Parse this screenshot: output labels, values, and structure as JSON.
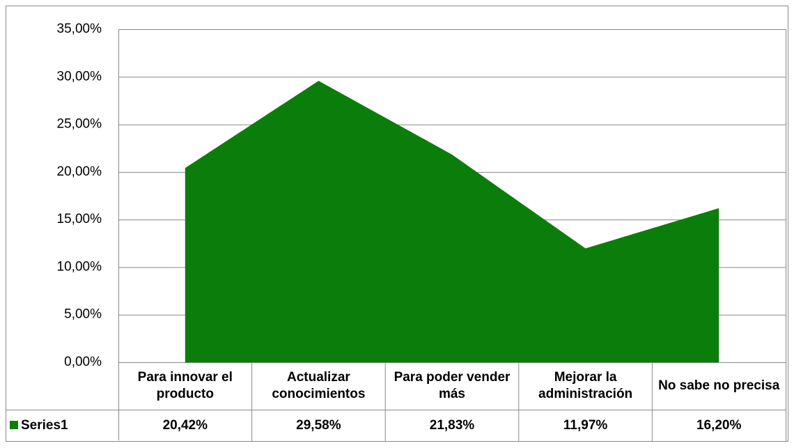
{
  "chart_data": {
    "type": "area",
    "categories": [
      "Para innovar el producto",
      "Actualizar conocimientos",
      "Para poder vender más",
      "Mejorar la administración",
      "No sabe no precisa"
    ],
    "series": [
      {
        "name": "Series1",
        "color": "#0b7d0b",
        "values": [
          20.42,
          29.58,
          21.83,
          11.97,
          16.2
        ],
        "value_labels": [
          "20,42%",
          "29,58%",
          "21,83%",
          "11,97%",
          "16,20%"
        ]
      }
    ],
    "ylim": [
      0,
      35
    ],
    "yticks": [
      {
        "value": 0,
        "label": "0,00%"
      },
      {
        "value": 5,
        "label": "5,00%"
      },
      {
        "value": 10,
        "label": "10,00%"
      },
      {
        "value": 15,
        "label": "15,00%"
      },
      {
        "value": 20,
        "label": "20,00%"
      },
      {
        "value": 25,
        "label": "25,00%"
      },
      {
        "value": 30,
        "label": "30,00%"
      },
      {
        "value": 35,
        "label": "35,00%"
      }
    ],
    "grid": true,
    "data_table": true
  }
}
